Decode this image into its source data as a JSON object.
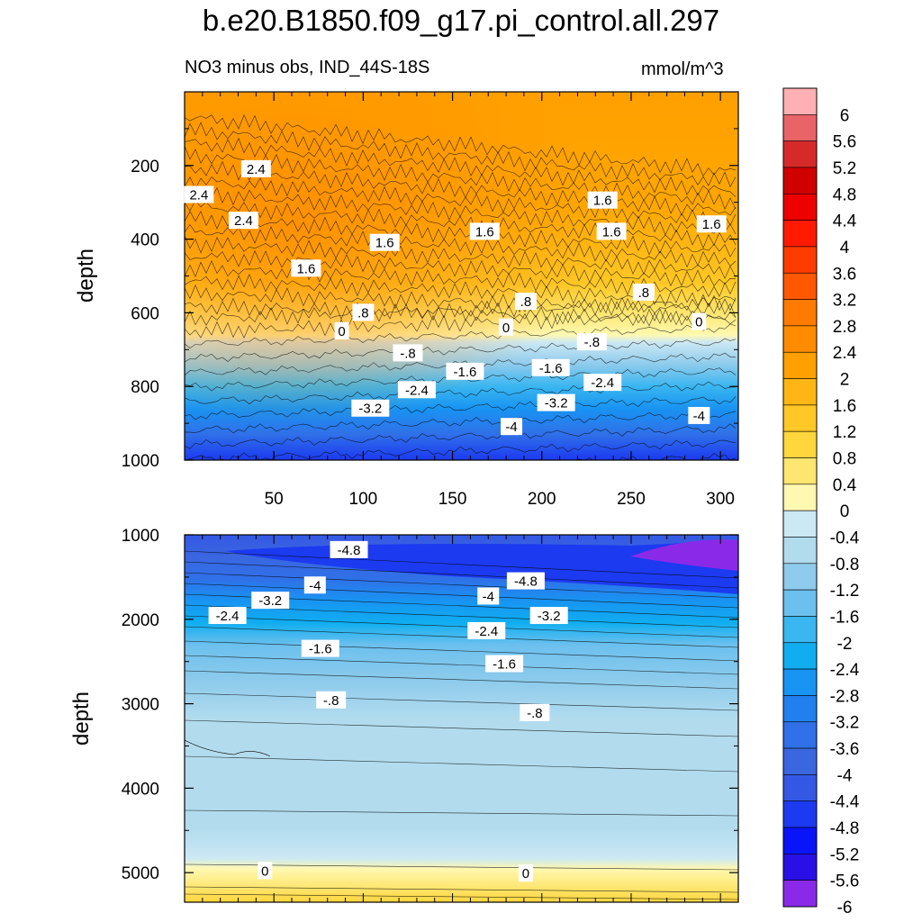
{
  "title": "b.e20.B1850.f09_g17.pi_control.all.297",
  "subtitle_left": "NO3 minus obs, IND_44S-18S",
  "subtitle_right": "mmol/m^3",
  "chart_data": [
    {
      "type": "heatmap",
      "panel": "upper",
      "ylabel": "depth",
      "xlabel": "",
      "xlim": [
        0,
        310
      ],
      "ylim": [
        1000,
        0
      ],
      "x_ticks": [
        50,
        100,
        150,
        200,
        250,
        300
      ],
      "y_ticks": [
        200,
        400,
        600,
        800,
        1000
      ],
      "contour_labels": [
        {
          "text": "2.4",
          "x": 8,
          "y": 280
        },
        {
          "text": "2.4",
          "x": 40,
          "y": 210
        },
        {
          "text": "2.4",
          "x": 33,
          "y": 350
        },
        {
          "text": "1.6",
          "x": 68,
          "y": 480
        },
        {
          "text": "1.6",
          "x": 112,
          "y": 410
        },
        {
          "text": "1.6",
          "x": 168,
          "y": 380
        },
        {
          "text": "1.6",
          "x": 234,
          "y": 295
        },
        {
          "text": "1.6",
          "x": 239,
          "y": 380
        },
        {
          "text": "1.6",
          "x": 295,
          "y": 360
        },
        {
          "text": ".8",
          "x": 100,
          "y": 600
        },
        {
          "text": ".8",
          "x": 191,
          "y": 570
        },
        {
          "text": ".8",
          "x": 257,
          "y": 545
        },
        {
          "text": "0",
          "x": 88,
          "y": 650
        },
        {
          "text": "0",
          "x": 180,
          "y": 640
        },
        {
          "text": "0",
          "x": 288,
          "y": 625
        },
        {
          "text": "-.8",
          "x": 125,
          "y": 710
        },
        {
          "text": "-.8",
          "x": 228,
          "y": 680
        },
        {
          "text": "-1.6",
          "x": 157,
          "y": 760
        },
        {
          "text": "-1.6",
          "x": 205,
          "y": 750
        },
        {
          "text": "-2.4",
          "x": 130,
          "y": 810
        },
        {
          "text": "-2.4",
          "x": 234,
          "y": 790
        },
        {
          "text": "-3.2",
          "x": 104,
          "y": 860
        },
        {
          "text": "-3.2",
          "x": 208,
          "y": 845
        },
        {
          "text": "-4",
          "x": 183,
          "y": 910
        },
        {
          "text": "-4",
          "x": 288,
          "y": 880
        }
      ]
    },
    {
      "type": "heatmap",
      "panel": "lower",
      "ylabel": "depth",
      "xlabel": "",
      "xlim": [
        0,
        310
      ],
      "ylim": [
        5350,
        1000
      ],
      "y_ticks": [
        1000,
        2000,
        3000,
        4000,
        5000
      ],
      "contour_labels": [
        {
          "text": "-4.8",
          "x": 92,
          "y": 1180
        },
        {
          "text": "-4.8",
          "x": 191,
          "y": 1550
        },
        {
          "text": "-4",
          "x": 73,
          "y": 1600
        },
        {
          "text": "-4",
          "x": 170,
          "y": 1730
        },
        {
          "text": "-3.2",
          "x": 48,
          "y": 1780
        },
        {
          "text": "-3.2",
          "x": 204,
          "y": 1960
        },
        {
          "text": "-2.4",
          "x": 24,
          "y": 1960
        },
        {
          "text": "-2.4",
          "x": 169,
          "y": 2140
        },
        {
          "text": "-1.6",
          "x": 76,
          "y": 2350
        },
        {
          "text": "-1.6",
          "x": 179,
          "y": 2530
        },
        {
          "text": "-.8",
          "x": 82,
          "y": 2960
        },
        {
          "text": "-.8",
          "x": 196,
          "y": 3110
        },
        {
          "text": "0",
          "x": 45,
          "y": 4980
        },
        {
          "text": "0",
          "x": 191,
          "y": 5010
        }
      ]
    },
    {
      "type": "colorbar",
      "levels": [
        "6",
        "5.6",
        "5.2",
        "4.8",
        "4.4",
        "4",
        "3.6",
        "3.2",
        "2.8",
        "2.4",
        "2",
        "1.6",
        "1.2",
        "0.8",
        "0.4",
        "0",
        "-0.4",
        "-0.8",
        "-1.2",
        "-1.6",
        "-2",
        "-2.4",
        "-2.8",
        "-3.2",
        "-3.6",
        "-4",
        "-4.4",
        "-4.8",
        "-5.2",
        "-5.6",
        "-6"
      ],
      "colors": [
        "#ffb0b4",
        "#e86468",
        "#d62a2a",
        "#d00000",
        "#ee0000",
        "#ff1a00",
        "#ff3c00",
        "#ff5800",
        "#ff7a00",
        "#ff8c00",
        "#ffa000",
        "#ffb614",
        "#ffc826",
        "#ffd63c",
        "#ffe670",
        "#fff8b0",
        "#cce8f4",
        "#b2dcee",
        "#8ecbec",
        "#6cc0ee",
        "#3ab6f0",
        "#10aef0",
        "#1894f2",
        "#2280ee",
        "#3070e8",
        "#3a66e0",
        "#3458e4",
        "#1c3af0",
        "#0a14f8",
        "#2a10e6",
        "#8a2ae8"
      ]
    }
  ]
}
